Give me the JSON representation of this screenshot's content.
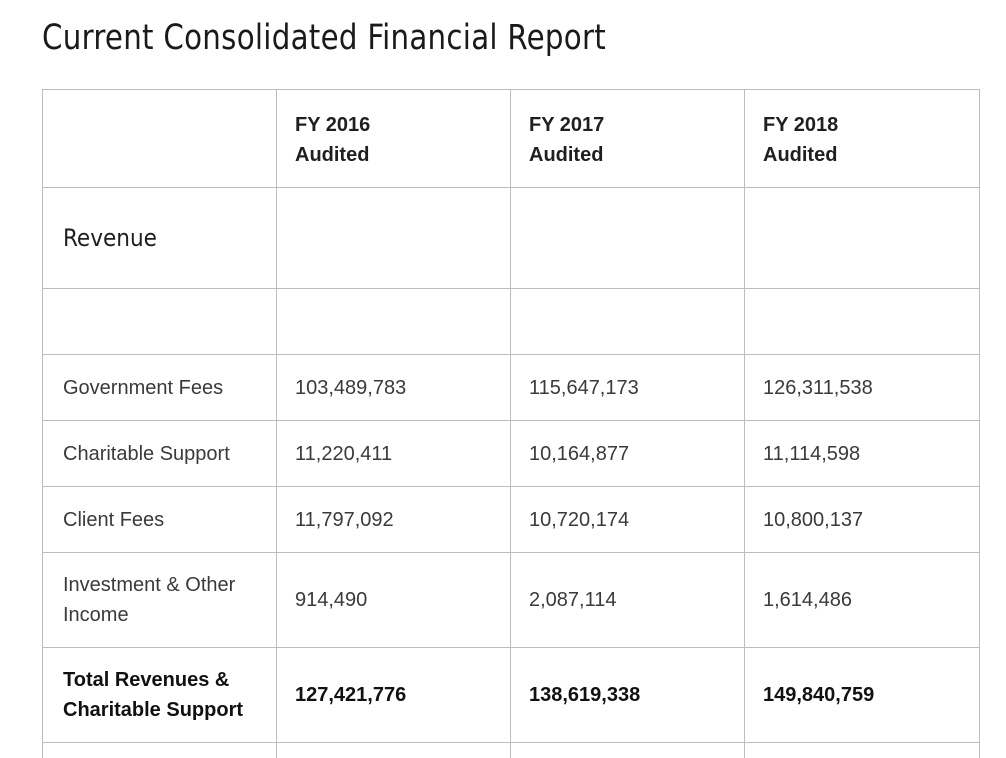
{
  "report": {
    "title": "Current Consolidated Financial Report",
    "columns": [
      {
        "line1": "FY 2016",
        "line2": "Audited"
      },
      {
        "line1": "FY 2017",
        "line2": "Audited"
      },
      {
        "line1": "FY 2018",
        "line2": "Audited"
      }
    ],
    "section_label": "Revenue",
    "rows": [
      {
        "label": "Government Fees",
        "values": [
          "103,489,783",
          "115,647,173",
          "126,311,538"
        ]
      },
      {
        "label": "Charitable Support",
        "values": [
          "11,220,411",
          "10,164,877",
          "11,114,598"
        ]
      },
      {
        "label": "Client Fees",
        "values": [
          "11,797,092",
          "10,720,174",
          "10,800,137"
        ]
      },
      {
        "label_line1": "Investment & Other",
        "label_line2": "Income",
        "values": [
          "914,490",
          "2,087,114",
          "1,614,486"
        ]
      }
    ],
    "total": {
      "label_line1": "Total Revenues &",
      "label_line2": "Charitable Support",
      "values": [
        "127,421,776",
        "138,619,338",
        "149,840,759"
      ]
    }
  }
}
